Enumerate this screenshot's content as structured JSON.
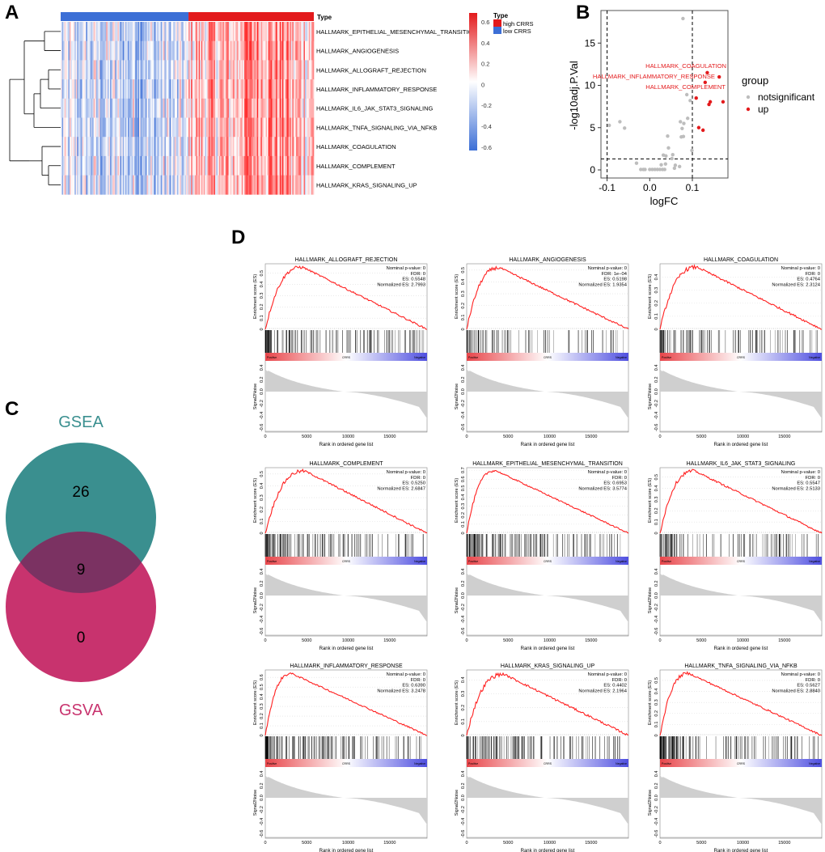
{
  "panel_labels": {
    "a": "A",
    "b": "B",
    "c": "C",
    "d": "D"
  },
  "colors": {
    "high": "#e31a1c",
    "low": "#3c6fd6",
    "gsea": "#3a8f8f",
    "gsva": "#c8336e",
    "overlap": "#7b3262",
    "up": "#e31a1c",
    "ns": "#bdbdbd"
  },
  "chart_data": [
    {
      "type": "heatmap",
      "panel": "A",
      "annotation_label": "Type",
      "rows": [
        "HALLMARK_EPITHELIAL_MESENCHYMAL_TRANSITION",
        "HALLMARK_ANGIOGENESIS",
        "HALLMARK_ALLOGRAFT_REJECTION",
        "HALLMARK_INFLAMMATORY_RESPONSE",
        "HALLMARK_IL6_JAK_STAT3_SIGNALING",
        "HALLMARK_TNFA_SIGNALING_VIA_NFKB",
        "HALLMARK_COAGULATION",
        "HALLMARK_COMPLEMENT",
        "HALLMARK_KRAS_SIGNALING_UP"
      ],
      "groups": [
        {
          "name": "low CRRS",
          "fraction": 0.505
        },
        {
          "name": "high CRRS",
          "fraction": 0.495
        }
      ],
      "legend": {
        "title": "Type",
        "items": [
          "high CRRS",
          "low CRRS"
        ]
      },
      "colorbar_ticks": [
        "0.6",
        "0.4",
        "0.2",
        "0",
        "-0.2",
        "-0.4",
        "-0.6"
      ],
      "range": [
        -0.6,
        0.6
      ]
    },
    {
      "type": "scatter",
      "panel": "B",
      "xlabel": "logFC",
      "ylabel": "-log10adj.P.Val",
      "xlim": [
        -0.105,
        0.18
      ],
      "ylim": [
        -0.8,
        18.6
      ],
      "xticks": [
        "-0.1",
        "0.0",
        "0.1"
      ],
      "xtick_values": [
        -0.1,
        0.0,
        0.1
      ],
      "yticks": [
        "0",
        "5",
        "10",
        "15"
      ],
      "ytick_values": [
        0,
        5,
        10,
        15
      ],
      "thresholds": {
        "x": [
          -0.1,
          0.1
        ],
        "y": 1.3
      },
      "legend": {
        "title": "group",
        "items": [
          "notsignificant",
          "up"
        ]
      },
      "labels": [
        {
          "text": "HALLMARK_COAGULATION",
          "x": 0.135,
          "y": 11.5
        },
        {
          "text": "HALLMARK_INFLAMMATORY_RESPONSE",
          "x": 0.163,
          "y": 11.0
        },
        {
          "text": "HALLMARK_COMPLEMENT",
          "x": 0.13,
          "y": 10.35
        }
      ],
      "series": [
        {
          "name": "notsignificant",
          "points": [
            [
              0.078,
              17.9
            ],
            [
              -0.095,
              5.27
            ],
            [
              -0.07,
              5.7
            ],
            [
              -0.059,
              4.95
            ],
            [
              0.087,
              8.9
            ],
            [
              0.095,
              8.2
            ],
            [
              0.072,
              5.7
            ],
            [
              0.08,
              5.5
            ],
            [
              0.089,
              6.1
            ],
            [
              0.076,
              4.9
            ],
            [
              0.074,
              3.9
            ],
            [
              0.079,
              3.95
            ],
            [
              0.042,
              4.0
            ],
            [
              0.044,
              2.6
            ],
            [
              0.099,
              2.3
            ],
            [
              0.032,
              1.75
            ],
            [
              0.038,
              1.65
            ],
            [
              0.054,
              1.8
            ],
            [
              0.052,
              1.35
            ],
            [
              -0.031,
              0.8
            ],
            [
              0.027,
              0.6
            ],
            [
              0.037,
              0.7
            ],
            [
              0.06,
              0.55
            ],
            [
              0.058,
              0.2
            ],
            [
              0.07,
              0.4
            ],
            [
              -0.021,
              0.05
            ],
            [
              -0.015,
              0.05
            ],
            [
              -0.011,
              0.05
            ],
            [
              0.0,
              0.05
            ],
            [
              0.006,
              0.05
            ],
            [
              0.012,
              0.05
            ],
            [
              0.018,
              0.05
            ],
            [
              0.024,
              0.05
            ],
            [
              0.03,
              0.05
            ],
            [
              0.035,
              0.05
            ]
          ]
        },
        {
          "name": "up",
          "points": [
            [
              0.135,
              11.5
            ],
            [
              0.163,
              11.0
            ],
            [
              0.13,
              10.35
            ],
            [
              0.109,
              8.5
            ],
            [
              0.142,
              8.05
            ],
            [
              0.139,
              7.75
            ],
            [
              0.172,
              8.05
            ],
            [
              0.115,
              5.0
            ],
            [
              0.125,
              4.7
            ]
          ]
        }
      ]
    },
    {
      "type": "venn",
      "panel": "C",
      "sets": [
        "GSEA",
        "GSVA"
      ],
      "counts": {
        "gsea_only": "26",
        "both": "9",
        "gsva_only": "0"
      }
    },
    {
      "type": "line",
      "panel": "D",
      "ylabel_top": "Enrichment score (ES)",
      "ylabel_bottom": "Signal2Noise",
      "xlabel": "Rank in ordered gene list",
      "xticks": [
        "0",
        "5000",
        "10000",
        "15000"
      ],
      "xtick_values": [
        0,
        5000,
        10000,
        15000
      ],
      "n_genes": 19500,
      "s2n_ticks": [
        "0.4",
        "0.2",
        "0.0",
        "-0.2",
        "-0.4",
        "-0.6"
      ],
      "bar_labels": {
        "pos": "Positive",
        "mid": "CRRS",
        "neg": "Negative"
      },
      "panels": [
        {
          "title": "HALLMARK_ALLOGRAFT_REJECTION",
          "p": "Nominal p-value: 0",
          "fdr": "FDR: 0",
          "es_text": "ES: 0.5548",
          "nes": "Normalized ES: 2.7993",
          "es": 0.5548,
          "peak": 4500,
          "ymax": 0.57,
          "yticks": [
            0,
            0.1,
            0.2,
            0.3,
            0.4,
            0.5
          ],
          "density": 0.9
        },
        {
          "title": "HALLMARK_ANGIOGENESIS",
          "p": "Nominal p-value: 0",
          "fdr": "FDR: 1e−04",
          "es_text": "ES: 0.5198",
          "nes": "Normalized ES: 1.9354",
          "es": 0.5198,
          "peak": 4000,
          "ymax": 0.54,
          "yticks": [
            0,
            0.1,
            0.2,
            0.3,
            0.4,
            0.5
          ],
          "density": 0.35
        },
        {
          "title": "HALLMARK_COAGULATION",
          "p": "Nominal p-value: 0",
          "fdr": "FDR: 0",
          "es_text": "ES: 0.4764",
          "nes": "Normalized ES: 2.3124",
          "es": 0.4764,
          "peak": 4500,
          "ymax": 0.49,
          "yticks": [
            0,
            0.1,
            0.2,
            0.3,
            0.4
          ],
          "density": 0.6
        },
        {
          "title": "HALLMARK_COMPLEMENT",
          "p": "Nominal p-value: 0",
          "fdr": "FDR: 0",
          "es_text": "ES: 0.5250",
          "nes": "Normalized ES: 2.6847",
          "es": 0.525,
          "peak": 4800,
          "ymax": 0.54,
          "yticks": [
            0,
            0.1,
            0.2,
            0.3,
            0.4,
            0.5
          ],
          "density": 0.8
        },
        {
          "title": "HALLMARK_EPITHELIAL_MESENCHYMAL_TRANSITION",
          "p": "Nominal p-value: 0",
          "fdr": "FDR: 0",
          "es_text": "ES: 0.6953",
          "nes": "Normalized ES: 3.5774",
          "es": 0.6953,
          "peak": 3500,
          "ymax": 0.71,
          "yticks": [
            0,
            0.1,
            0.2,
            0.3,
            0.4,
            0.5,
            0.6,
            0.7
          ],
          "density": 1.0
        },
        {
          "title": "HALLMARK_IL6_JAK_STAT3_SIGNALING",
          "p": "Nominal p-value: 0",
          "fdr": "FDR: 0",
          "es_text": "ES: 0.5547",
          "nes": "Normalized ES: 2.5133",
          "es": 0.5547,
          "peak": 4200,
          "ymax": 0.57,
          "yticks": [
            0,
            0.1,
            0.2,
            0.3,
            0.4,
            0.5
          ],
          "density": 0.6
        },
        {
          "title": "HALLMARK_INFLAMMATORY_RESPONSE",
          "p": "Nominal p-value: 0",
          "fdr": "FDR: 0",
          "es_text": "ES: 0.6390",
          "nes": "Normalized ES: 3.2478",
          "es": 0.639,
          "peak": 3200,
          "ymax": 0.66,
          "yticks": [
            0,
            0.1,
            0.2,
            0.3,
            0.4,
            0.5,
            0.6
          ],
          "density": 0.95
        },
        {
          "title": "HALLMARK_KRAS_SIGNALING_UP",
          "p": "Nominal p-value: 0",
          "fdr": "FDR: 0",
          "es_text": "ES: 0.4402",
          "nes": "Normalized ES: 2.1964",
          "es": 0.4402,
          "peak": 4500,
          "ymax": 0.46,
          "yticks": [
            0,
            0.1,
            0.2,
            0.3,
            0.4
          ],
          "density": 0.85
        },
        {
          "title": "HALLMARK_TNFA_SIGNALING_VIA_NFKB",
          "p": "Nominal p-value: 0",
          "fdr": "FDR: 0",
          "es_text": "ES: 0.5627",
          "nes": "Normalized ES: 2.8840",
          "es": 0.5627,
          "peak": 3500,
          "ymax": 0.58,
          "yticks": [
            0,
            0.1,
            0.2,
            0.3,
            0.4,
            0.5
          ],
          "density": 0.9
        }
      ]
    }
  ]
}
